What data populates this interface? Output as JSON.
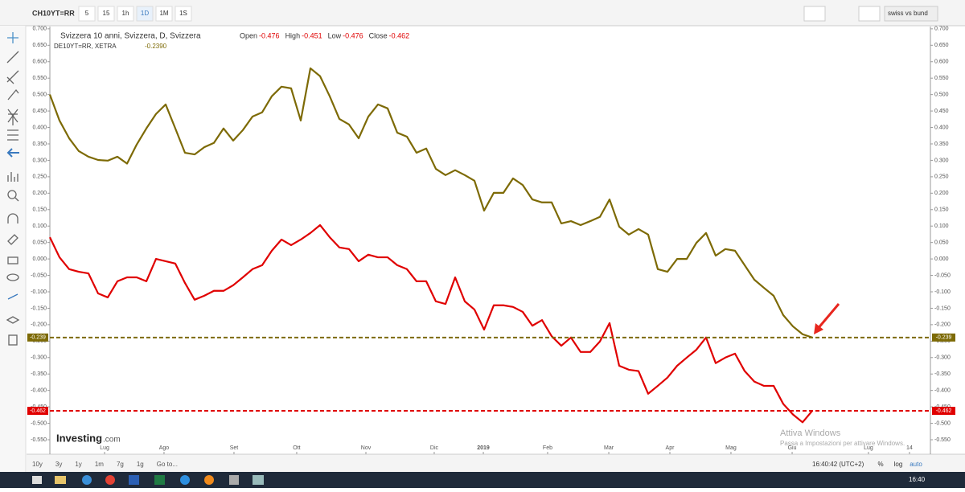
{
  "toolbar": {
    "symbol": "CH10YT=RR",
    "intervals": [
      "5",
      "15",
      "1h",
      "1D",
      "1M",
      "1S"
    ],
    "compare": "swiss vs bund"
  },
  "chart_data": {
    "type": "line",
    "legend_header": {
      "title": "Svizzera 10 anni, Svizzera, D, Svizzera",
      "ohlc": [
        {
          "label": "Open",
          "value": -0.476
        },
        {
          "label": "High",
          "value": -0.451
        },
        {
          "label": "Low",
          "value": -0.476
        },
        {
          "label": "Close",
          "value": -0.462
        }
      ],
      "second": "DE10YT=RR, XETRA",
      "second_value": "-0.2390"
    },
    "x": [
      0,
      1,
      2,
      3,
      4,
      5,
      6,
      7,
      8,
      9,
      10,
      11,
      12,
      13,
      14,
      15,
      16,
      17,
      18,
      19,
      20,
      21,
      22,
      23,
      24,
      25,
      26,
      27,
      28,
      29,
      30,
      31,
      32,
      33,
      34,
      35,
      36,
      37,
      38,
      39,
      40,
      41,
      42,
      43,
      44,
      45,
      46,
      47,
      48,
      49,
      50,
      51,
      52,
      53,
      54,
      55,
      56,
      57,
      58,
      59,
      60,
      61,
      62,
      63,
      64,
      65,
      66,
      67,
      68,
      69,
      70,
      71,
      72,
      73,
      74,
      75,
      76,
      77,
      78,
      79
    ],
    "series": [
      {
        "name": "DE10YT=RR, XETRA",
        "color": "#7d6a05",
        "values": [
          0.5,
          0.421,
          0.367,
          0.328,
          0.311,
          0.301,
          0.299,
          0.311,
          0.29,
          0.348,
          0.397,
          0.441,
          0.47,
          0.397,
          0.323,
          0.318,
          0.34,
          0.353,
          0.397,
          0.36,
          0.392,
          0.433,
          0.446,
          0.495,
          0.524,
          0.519,
          0.421,
          0.58,
          0.556,
          0.495,
          0.426,
          0.409,
          0.367,
          0.433,
          0.47,
          0.458,
          0.384,
          0.372,
          0.323,
          0.336,
          0.274,
          0.255,
          0.27,
          0.255,
          0.238,
          0.147,
          0.201,
          0.201,
          0.245,
          0.225,
          0.181,
          0.172,
          0.172,
          0.108,
          0.115,
          0.103,
          0.115,
          0.128,
          0.181,
          0.098,
          0.074,
          0.091,
          0.074,
          -0.031,
          -0.039,
          0.0,
          0.0,
          0.049,
          0.079,
          0.01,
          0.03,
          0.025,
          -0.019,
          -0.063,
          -0.088,
          -0.112,
          -0.171,
          -0.205,
          -0.229,
          -0.239
        ]
      },
      {
        "name": "Svizzera 10 anni, Svizzera, D, Svizzera",
        "color": "#e00000",
        "values": [
          0.066,
          0.005,
          -0.031,
          -0.039,
          -0.044,
          -0.105,
          -0.117,
          -0.068,
          -0.056,
          -0.056,
          -0.068,
          0.0,
          -0.007,
          -0.014,
          -0.073,
          -0.124,
          -0.112,
          -0.097,
          -0.097,
          -0.08,
          -0.056,
          -0.031,
          -0.019,
          0.025,
          0.059,
          0.042,
          0.059,
          0.079,
          0.103,
          0.066,
          0.035,
          0.03,
          -0.007,
          0.013,
          0.005,
          0.005,
          -0.019,
          -0.031,
          -0.068,
          -0.068,
          -0.129,
          -0.137,
          -0.056,
          -0.129,
          -0.154,
          -0.215,
          -0.141,
          -0.141,
          -0.146,
          -0.161,
          -0.203,
          -0.186,
          -0.235,
          -0.264,
          -0.239,
          -0.283,
          -0.283,
          -0.251,
          -0.195,
          -0.325,
          -0.337,
          -0.341,
          -0.41,
          -0.386,
          -0.361,
          -0.325,
          -0.3,
          -0.276,
          -0.239,
          -0.317,
          -0.3,
          -0.288,
          -0.341,
          -0.373,
          -0.386,
          -0.386,
          -0.441,
          -0.473,
          -0.497,
          -0.462
        ]
      }
    ],
    "reference_lines": [
      {
        "value": -0.239,
        "label": "-0.239",
        "color": "#7d6a05"
      },
      {
        "value": -0.462,
        "label": "-0.462",
        "color": "#e00000"
      }
    ],
    "xlim": [
      0,
      91.25
    ],
    "xticks": [
      {
        "value": 5.67,
        "label": "Lug"
      },
      {
        "value": 11.83,
        "label": "Ago"
      },
      {
        "value": 19.08,
        "label": "Set"
      },
      {
        "value": 25.58,
        "label": "Ott"
      },
      {
        "value": 32.75,
        "label": "Nov"
      },
      {
        "value": 39.83,
        "label": "Dic"
      },
      {
        "value": 44.92,
        "label": "2019"
      },
      {
        "value": 51.58,
        "label": "Feb"
      },
      {
        "value": 57.92,
        "label": "Mar"
      },
      {
        "value": 64.25,
        "label": "Apr"
      },
      {
        "value": 70.58,
        "label": "Mag"
      },
      {
        "value": 76.92,
        "label": "Giu"
      },
      {
        "value": 84.83,
        "label": "Lug"
      },
      {
        "value": 89.08,
        "label": "14"
      }
    ],
    "ylim": [
      -0.594,
      0.707
    ],
    "yticks": [
      {
        "value": -0.55,
        "label": "-0.550"
      },
      {
        "value": -0.5,
        "label": "-0.500"
      },
      {
        "value": -0.45,
        "label": "-0.450"
      },
      {
        "value": -0.4,
        "label": "-0.400"
      },
      {
        "value": -0.35,
        "label": "-0.350"
      },
      {
        "value": -0.3,
        "label": "-0.300"
      },
      {
        "value": -0.25,
        "label": "-0.250"
      },
      {
        "value": -0.2,
        "label": "-0.200"
      },
      {
        "value": -0.15,
        "label": "-0.150"
      },
      {
        "value": -0.1,
        "label": "-0.100"
      },
      {
        "value": -0.05,
        "label": "-0.050"
      },
      {
        "value": 0,
        "label": "0.000"
      },
      {
        "value": 0.05,
        "label": "0.050"
      },
      {
        "value": 0.1,
        "label": "0.100"
      },
      {
        "value": 0.15,
        "label": "0.150"
      },
      {
        "value": 0.2,
        "label": "0.200"
      },
      {
        "value": 0.25,
        "label": "0.250"
      },
      {
        "value": 0.3,
        "label": "0.300"
      },
      {
        "value": 0.35,
        "label": "0.350"
      },
      {
        "value": 0.4,
        "label": "0.400"
      },
      {
        "value": 0.45,
        "label": "0.450"
      },
      {
        "value": 0.5,
        "label": "0.500"
      },
      {
        "value": 0.55,
        "label": "0.550"
      },
      {
        "value": 0.6,
        "label": "0.600"
      },
      {
        "value": 0.65,
        "label": "0.650"
      },
      {
        "value": 0.7,
        "label": "0.700"
      }
    ],
    "grid": false,
    "logo": "Investing",
    "logo_suffix": ".com"
  },
  "bottom_bar": {
    "ranges": [
      "10y",
      "3y",
      "1y",
      "1m",
      "7g",
      "1g",
      "Go to..."
    ],
    "clock": "16:40:42 (UTC+2)",
    "options": [
      "%",
      "log",
      "auto"
    ]
  },
  "watermark": {
    "title": "Attiva Windows",
    "text": "Passa a Impostazioni per attivare Windows."
  },
  "taskbar": {
    "time": "16:40"
  }
}
